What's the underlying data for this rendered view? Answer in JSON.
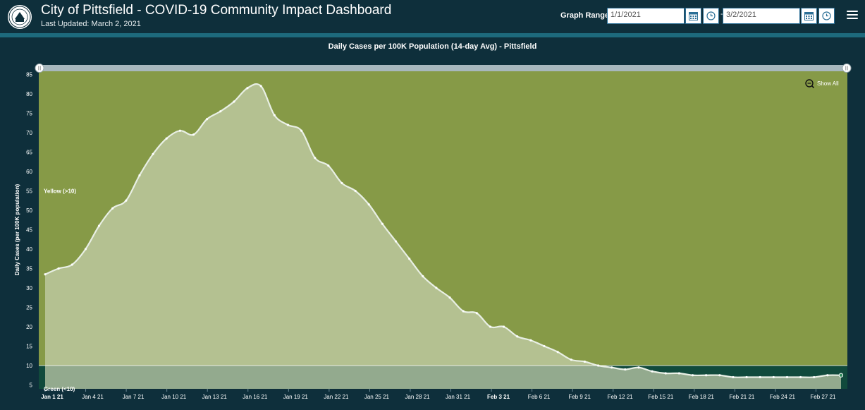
{
  "header": {
    "title": "City of Pittsfield - COVID-19 Community Impact Dashboard",
    "last_updated": "Last Updated: March 2, 2021",
    "seal_icon": "city-seal-icon"
  },
  "graph_range": {
    "label": "Graph Range",
    "start_value": "1/1/2021",
    "end_value": "3/2/2021",
    "separator": "-",
    "calendar_icon": "calendar-icon",
    "clock_icon": "clock-icon"
  },
  "menu_icon": "hamburger-menu-icon",
  "colors": {
    "background": "#0e2f3b",
    "stripe": "#1d6a7c",
    "yellow_zone": "#869a47",
    "green_zone": "#114a3c",
    "area_fill": "#c6d0ae",
    "line": "#e8efe4"
  },
  "chart": {
    "show_all_label": "Show All",
    "zoom_icon": "zoom-out-icon"
  },
  "chart_data": {
    "type": "area",
    "title": "Daily Cases per 100K Population (14-day Avg) - Pittsfield",
    "xlabel": "",
    "ylabel": "Daily Cases (per 100K population)",
    "ylim": [
      4,
      86
    ],
    "yticks": [
      5,
      10,
      15,
      20,
      25,
      30,
      35,
      40,
      45,
      50,
      55,
      60,
      65,
      70,
      75,
      80,
      85
    ],
    "xtick_labels": [
      "Jan 1 21",
      "Jan 4 21",
      "Jan 7 21",
      "Jan 10 21",
      "Jan 13 21",
      "Jan 16 21",
      "Jan 19 21",
      "Jan 22 21",
      "Jan 25 21",
      "Jan 28 21",
      "Jan 31 21",
      "Feb 3 21",
      "Feb 6 21",
      "Feb 9 21",
      "Feb 12 21",
      "Feb 15 21",
      "Feb 18 21",
      "Feb 21 21",
      "Feb 24 21",
      "Feb 27 21"
    ],
    "bold_ticks": [
      "Jan 1 21",
      "Feb 3 21"
    ],
    "bands": [
      {
        "name": "Yellow (>10)",
        "from": 10,
        "to": 86,
        "color": "#869a47"
      },
      {
        "name": "Green (<10)",
        "from": 4,
        "to": 10,
        "color": "#114a3c"
      }
    ],
    "series": [
      {
        "name": "Pittsfield",
        "values": [
          33.5,
          35,
          36,
          40,
          46,
          50.5,
          52.5,
          59,
          64.5,
          68.5,
          70.5,
          69.5,
          73.5,
          75.5,
          78,
          81.5,
          82,
          74.5,
          72,
          70.5,
          63.5,
          61.5,
          57,
          55,
          51.5,
          46.5,
          42,
          37.5,
          33,
          30,
          27.5,
          24,
          23.5,
          20,
          20,
          17.5,
          16.5,
          15,
          13.5,
          11.5,
          11,
          10,
          9.5,
          9,
          9.5,
          8.5,
          8,
          8,
          7.5,
          7.5,
          7.5,
          7,
          7,
          7,
          7,
          7,
          7,
          7,
          7.5,
          7.5
        ]
      }
    ]
  }
}
